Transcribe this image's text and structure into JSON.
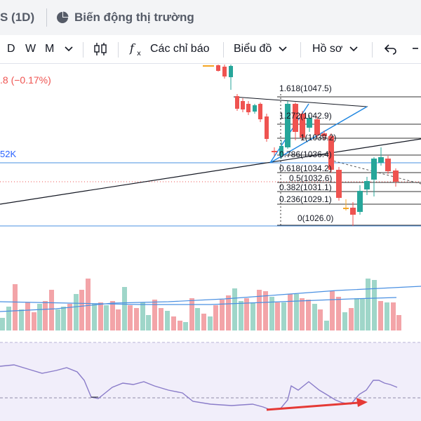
{
  "tabs": {
    "symbol": "S (1D)",
    "market_label": "Biến động thị trường"
  },
  "toolbar": {
    "intervals": [
      "D",
      "W",
      "M"
    ],
    "indicators_label": "Các chỉ báo",
    "chart_type_label": "Biểu đồ",
    "profile_label": "Hồ sơ"
  },
  "legend": {
    "change": ".8 (−0.17%)",
    "volume_label": "52K"
  },
  "colors": {
    "up": "#26a69a",
    "down": "#ef5350",
    "volume_up": "#9fd6c9",
    "volume_down": "#f3a4a8",
    "rsi_line": "#8a7cc9",
    "rsi_bg": "#f1eefa",
    "arrow": "#e53935",
    "trend": "#1e88e5"
  },
  "fib_levels": [
    {
      "label": "1.618(1047.5)"
    },
    {
      "label": "1.272(1042.9)"
    },
    {
      "label": "1(1039.2)"
    },
    {
      "label": "0.786(1036.4)"
    },
    {
      "label": "0.618(1034.2)"
    },
    {
      "label": "0.5(1032.6)"
    },
    {
      "label": "0.382(1031.1)"
    },
    {
      "label": "0.236(1029.1)"
    },
    {
      "label": "0(1026.0)"
    }
  ]
}
